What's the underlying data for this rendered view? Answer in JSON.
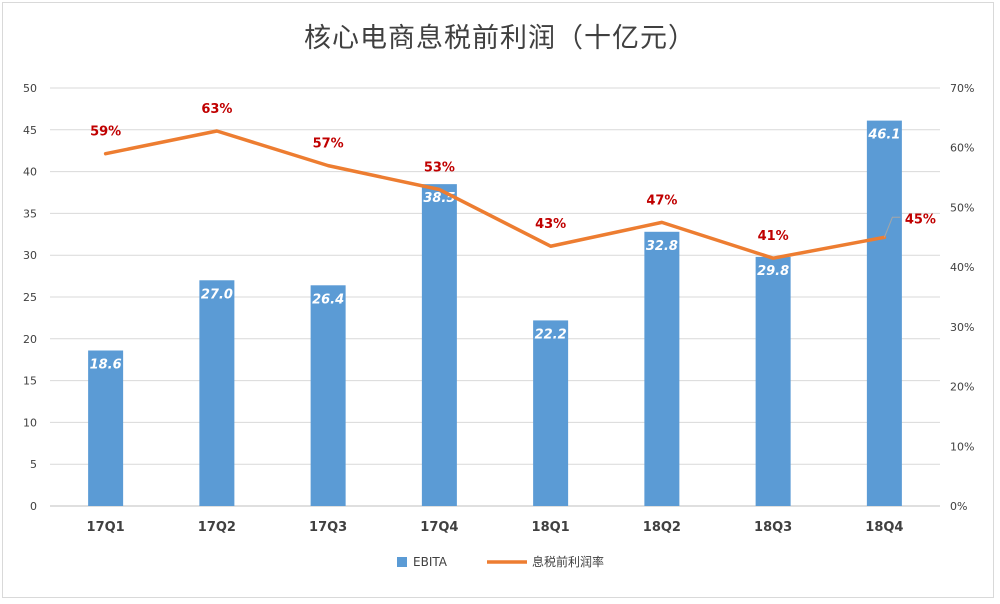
{
  "chart_data": {
    "type": "bar",
    "title": "核心电商息税前利润（十亿元）",
    "categories": [
      "17Q1",
      "17Q2",
      "17Q3",
      "17Q4",
      "18Q1",
      "18Q2",
      "18Q3",
      "18Q4"
    ],
    "series": [
      {
        "name": "EBITA",
        "type": "bar",
        "axis": "left",
        "color": "#5b9bd5",
        "values": [
          18.6,
          27.0,
          26.4,
          38.5,
          22.2,
          32.8,
          29.8,
          46.1
        ],
        "labels": [
          "18.6",
          "27.0",
          "26.4",
          "38.5",
          "22.2",
          "32.8",
          "29.8",
          "46.1"
        ]
      },
      {
        "name": "息税前利润率",
        "type": "line",
        "axis": "right",
        "color": "#ed7d31",
        "values": [
          0.59,
          0.628,
          0.57,
          0.53,
          0.435,
          0.475,
          0.415,
          0.45
        ],
        "labels": [
          "59%",
          "63%",
          "57%",
          "53%",
          "43%",
          "47%",
          "41%",
          "45%"
        ]
      }
    ],
    "ylim": [
      0,
      50
    ],
    "yticks": [
      0,
      5,
      10,
      15,
      20,
      25,
      30,
      35,
      40,
      45,
      50
    ],
    "y2lim": [
      0,
      0.7
    ],
    "y2ticks": [
      "0%",
      "10%",
      "20%",
      "30%",
      "40%",
      "50%",
      "60%",
      "70%"
    ],
    "grid": true,
    "legend": "bottom",
    "label_color": "#c00000"
  }
}
